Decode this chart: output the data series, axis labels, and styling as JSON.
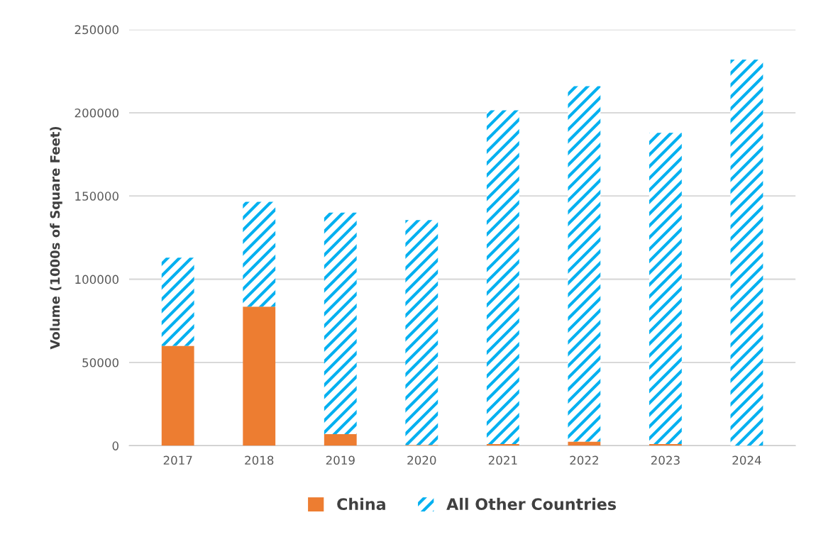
{
  "chart_data": {
    "type": "bar",
    "stacked": true,
    "ylabel": "Volume (1000s of Square Feet)",
    "categories": [
      "2017",
      "2018",
      "2019",
      "2020",
      "2021",
      "2022",
      "2023",
      "2024"
    ],
    "series": [
      {
        "name": "China",
        "color": "#ed7d31",
        "values": [
          60000,
          83500,
          7000,
          500,
          1000,
          2500,
          1000,
          0
        ]
      },
      {
        "name": "All Other Countries",
        "color": "#00b0f0",
        "values": [
          53000,
          63000,
          133000,
          135000,
          200500,
          213500,
          187000,
          232000
        ]
      }
    ],
    "ylim": [
      0,
      250000
    ],
    "yticks": [
      0,
      50000,
      100000,
      150000,
      200000,
      250000
    ],
    "grid": "y",
    "legend": "bottom"
  }
}
